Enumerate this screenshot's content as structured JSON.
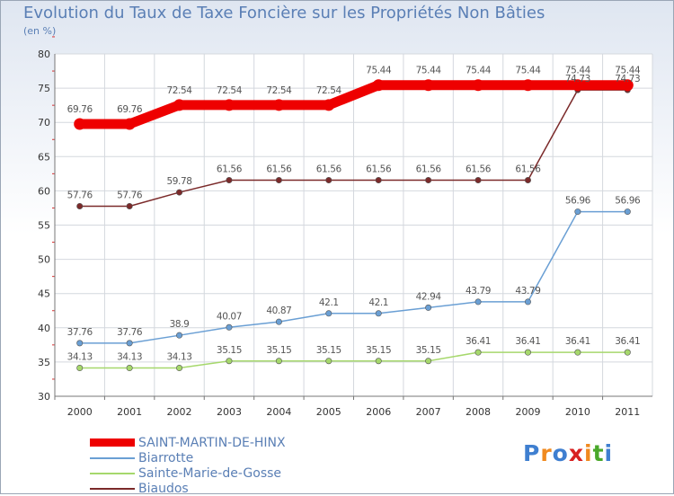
{
  "chart_data": {
    "type": "line",
    "title": "Evolution du Taux de Taxe Foncière sur les Propriétés Non Bâties",
    "ylabel": "(en %)",
    "xlabel": "",
    "x": [
      "2000",
      "2001",
      "2002",
      "2003",
      "2004",
      "2005",
      "2006",
      "2007",
      "2008",
      "2009",
      "2010",
      "2011"
    ],
    "ylim": [
      30,
      80
    ],
    "yticks": [
      "30",
      "35",
      "40",
      "45",
      "50",
      "55",
      "60",
      "65",
      "70",
      "75",
      "80"
    ],
    "grid": true,
    "legend_position": "bottom-left",
    "series": [
      {
        "name": "SAINT-MARTIN-DE-HINX",
        "color": "#ee0000",
        "values": [
          69.76,
          69.76,
          72.54,
          72.54,
          72.54,
          72.54,
          75.44,
          75.44,
          75.44,
          75.44,
          75.44,
          75.44
        ],
        "labels": [
          "69.76",
          "69.76",
          "72.54",
          "72.54",
          "72.54",
          "72.54",
          "75.44",
          "75.44",
          "75.44",
          "75.44",
          "75.44",
          "75.44"
        ]
      },
      {
        "name": "Biarrotte",
        "color": "#6a9fd4",
        "values": [
          37.76,
          37.76,
          38.9,
          40.07,
          40.87,
          42.1,
          42.1,
          42.94,
          43.79,
          43.79,
          56.96,
          56.96
        ],
        "labels": [
          "37.76",
          "37.76",
          "38.9",
          "40.07",
          "40.87",
          "42.1",
          "42.1",
          "42.94",
          "43.79",
          "43.79",
          "56.96",
          "56.96"
        ]
      },
      {
        "name": "Sainte-Marie-de-Gosse",
        "color": "#a6d86c",
        "values": [
          34.13,
          34.13,
          34.13,
          35.15,
          35.15,
          35.15,
          35.15,
          35.15,
          36.41,
          36.41,
          36.41,
          36.41
        ],
        "labels": [
          "34.13",
          "34.13",
          "34.13",
          "35.15",
          "35.15",
          "35.15",
          "35.15",
          "35.15",
          "36.41",
          "36.41",
          "36.41",
          "36.41"
        ]
      },
      {
        "name": "Biaudos",
        "color": "#7b2a2a",
        "values": [
          57.76,
          57.76,
          59.78,
          61.56,
          61.56,
          61.56,
          61.56,
          61.56,
          61.56,
          61.56,
          74.73,
          74.73
        ],
        "labels": [
          "57.76",
          "57.76",
          "59.78",
          "61.56",
          "61.56",
          "61.56",
          "61.56",
          "61.56",
          "61.56",
          "61.56",
          "74.73",
          "74.73"
        ]
      }
    ]
  },
  "brand": {
    "logo_text": "Proxiti"
  }
}
